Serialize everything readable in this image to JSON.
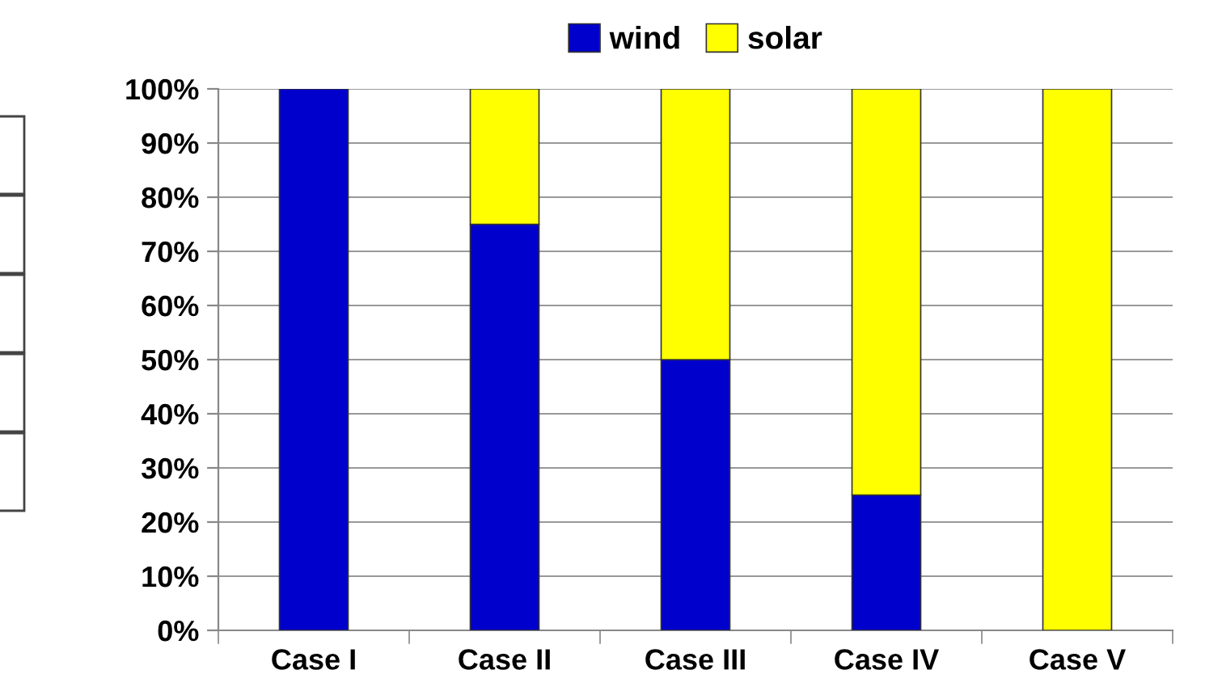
{
  "chart_data": {
    "type": "bar",
    "stacked": true,
    "categories": [
      "Case I",
      "Case II",
      "Case III",
      "Case IV",
      "Case V"
    ],
    "series": [
      {
        "name": "wind",
        "color": "#0000cc",
        "values": [
          100,
          75,
          50,
          25,
          0
        ]
      },
      {
        "name": "solar",
        "color": "#ffff00",
        "values": [
          0,
          25,
          50,
          75,
          100
        ]
      }
    ],
    "ylim": [
      0,
      100
    ],
    "yticks": [
      {
        "value": 0,
        "label": "0%"
      },
      {
        "value": 10,
        "label": "10%"
      },
      {
        "value": 20,
        "label": "20%"
      },
      {
        "value": 30,
        "label": "30%"
      },
      {
        "value": 40,
        "label": "40%"
      },
      {
        "value": 50,
        "label": "50%"
      },
      {
        "value": 60,
        "label": "60%"
      },
      {
        "value": 70,
        "label": "70%"
      },
      {
        "value": 80,
        "label": "80%"
      },
      {
        "value": 90,
        "label": "90%"
      },
      {
        "value": 100,
        "label": "100%"
      }
    ],
    "grid": "y",
    "legend": "top"
  }
}
